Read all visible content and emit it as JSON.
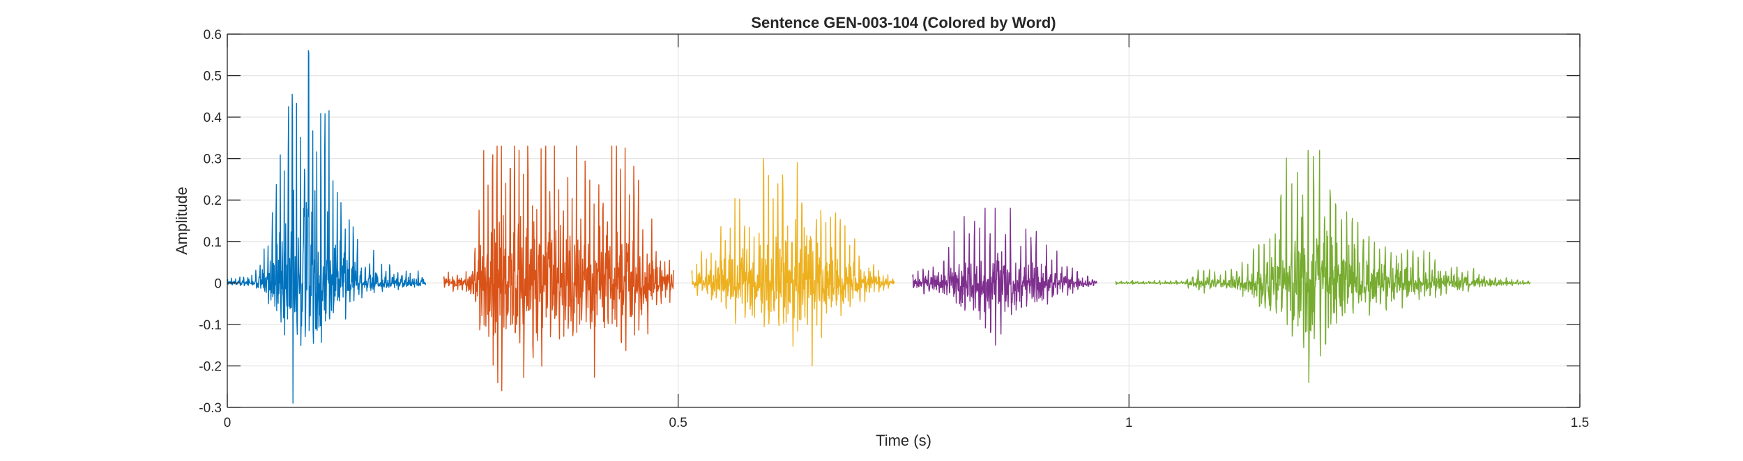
{
  "chart_data": {
    "type": "line",
    "title": "Sentence GEN-003-104 (Colored by Word)",
    "xlabel": "Time (s)",
    "ylabel": "Amplitude",
    "xlim": [
      0,
      1.5
    ],
    "ylim": [
      -0.3,
      0.6
    ],
    "xticks": [
      0,
      0.5,
      1,
      1.5
    ],
    "xtick_labels": [
      "0",
      "0.5",
      "1",
      "1.5"
    ],
    "yticks": [
      -0.3,
      -0.2,
      -0.1,
      0,
      0.1,
      0.2,
      0.3,
      0.4,
      0.5,
      0.6
    ],
    "ytick_labels": [
      "-0.3",
      "-0.2",
      "-0.1",
      "0",
      "0.1",
      "0.2",
      "0.3",
      "0.4",
      "0.5",
      "0.6"
    ],
    "grid": true,
    "box": true,
    "series": [
      {
        "color": "#0072BD",
        "t_start": 0.0,
        "t_end": 0.22,
        "envelope": [
          [
            0.0,
            0.01
          ],
          [
            0.03,
            0.02
          ],
          [
            0.045,
            0.1
          ],
          [
            0.06,
            0.3
          ],
          [
            0.07,
            0.56
          ],
          [
            0.08,
            0.4
          ],
          [
            0.09,
            0.49
          ],
          [
            0.1,
            0.45
          ],
          [
            0.11,
            0.35
          ],
          [
            0.12,
            0.26
          ],
          [
            0.13,
            0.2
          ],
          [
            0.145,
            0.1
          ],
          [
            0.17,
            0.04
          ],
          [
            0.2,
            0.03
          ],
          [
            0.22,
            0.02
          ]
        ],
        "max": 0.56,
        "min": -0.29
      },
      {
        "color": "#D95319",
        "t_start": 0.24,
        "t_end": 0.495,
        "envelope": [
          [
            0.24,
            0.02
          ],
          [
            0.265,
            0.03
          ],
          [
            0.275,
            0.1
          ],
          [
            0.285,
            0.27
          ],
          [
            0.29,
            0.33
          ],
          [
            0.31,
            0.32
          ],
          [
            0.34,
            0.29
          ],
          [
            0.38,
            0.29
          ],
          [
            0.42,
            0.27
          ],
          [
            0.44,
            0.26
          ],
          [
            0.46,
            0.18
          ],
          [
            0.475,
            0.09
          ],
          [
            0.495,
            0.05
          ]
        ],
        "max": 0.33,
        "min": -0.26
      },
      {
        "color": "#EDB120",
        "t_start": 0.515,
        "t_end": 0.74,
        "envelope": [
          [
            0.515,
            0.03
          ],
          [
            0.53,
            0.07
          ],
          [
            0.55,
            0.12
          ],
          [
            0.57,
            0.17
          ],
          [
            0.59,
            0.24
          ],
          [
            0.61,
            0.28
          ],
          [
            0.625,
            0.3
          ],
          [
            0.64,
            0.26
          ],
          [
            0.66,
            0.2
          ],
          [
            0.68,
            0.14
          ],
          [
            0.7,
            0.08
          ],
          [
            0.72,
            0.04
          ],
          [
            0.74,
            0.01
          ]
        ],
        "max": 0.3,
        "min": -0.2
      },
      {
        "color": "#7E2F8E",
        "t_start": 0.76,
        "t_end": 0.965,
        "envelope": [
          [
            0.76,
            0.02
          ],
          [
            0.79,
            0.05
          ],
          [
            0.81,
            0.11
          ],
          [
            0.83,
            0.17
          ],
          [
            0.84,
            0.18
          ],
          [
            0.86,
            0.15
          ],
          [
            0.88,
            0.12
          ],
          [
            0.9,
            0.1
          ],
          [
            0.92,
            0.06
          ],
          [
            0.94,
            0.03
          ],
          [
            0.965,
            0.01
          ]
        ],
        "max": 0.18,
        "min": -0.15
      },
      {
        "color": "#77AC30",
        "t_start": 0.985,
        "t_end": 1.445,
        "envelope": [
          [
            0.985,
            0.005
          ],
          [
            1.06,
            0.005
          ],
          [
            1.08,
            0.04
          ],
          [
            1.1,
            0.02
          ],
          [
            1.13,
            0.05
          ],
          [
            1.15,
            0.13
          ],
          [
            1.17,
            0.22
          ],
          [
            1.19,
            0.29
          ],
          [
            1.21,
            0.32
          ],
          [
            1.23,
            0.22
          ],
          [
            1.25,
            0.18
          ],
          [
            1.27,
            0.12
          ],
          [
            1.3,
            0.09
          ],
          [
            1.33,
            0.07
          ],
          [
            1.36,
            0.04
          ],
          [
            1.39,
            0.02
          ],
          [
            1.42,
            0.01
          ],
          [
            1.445,
            0.005
          ]
        ],
        "max": 0.32,
        "min": -0.24
      }
    ]
  }
}
